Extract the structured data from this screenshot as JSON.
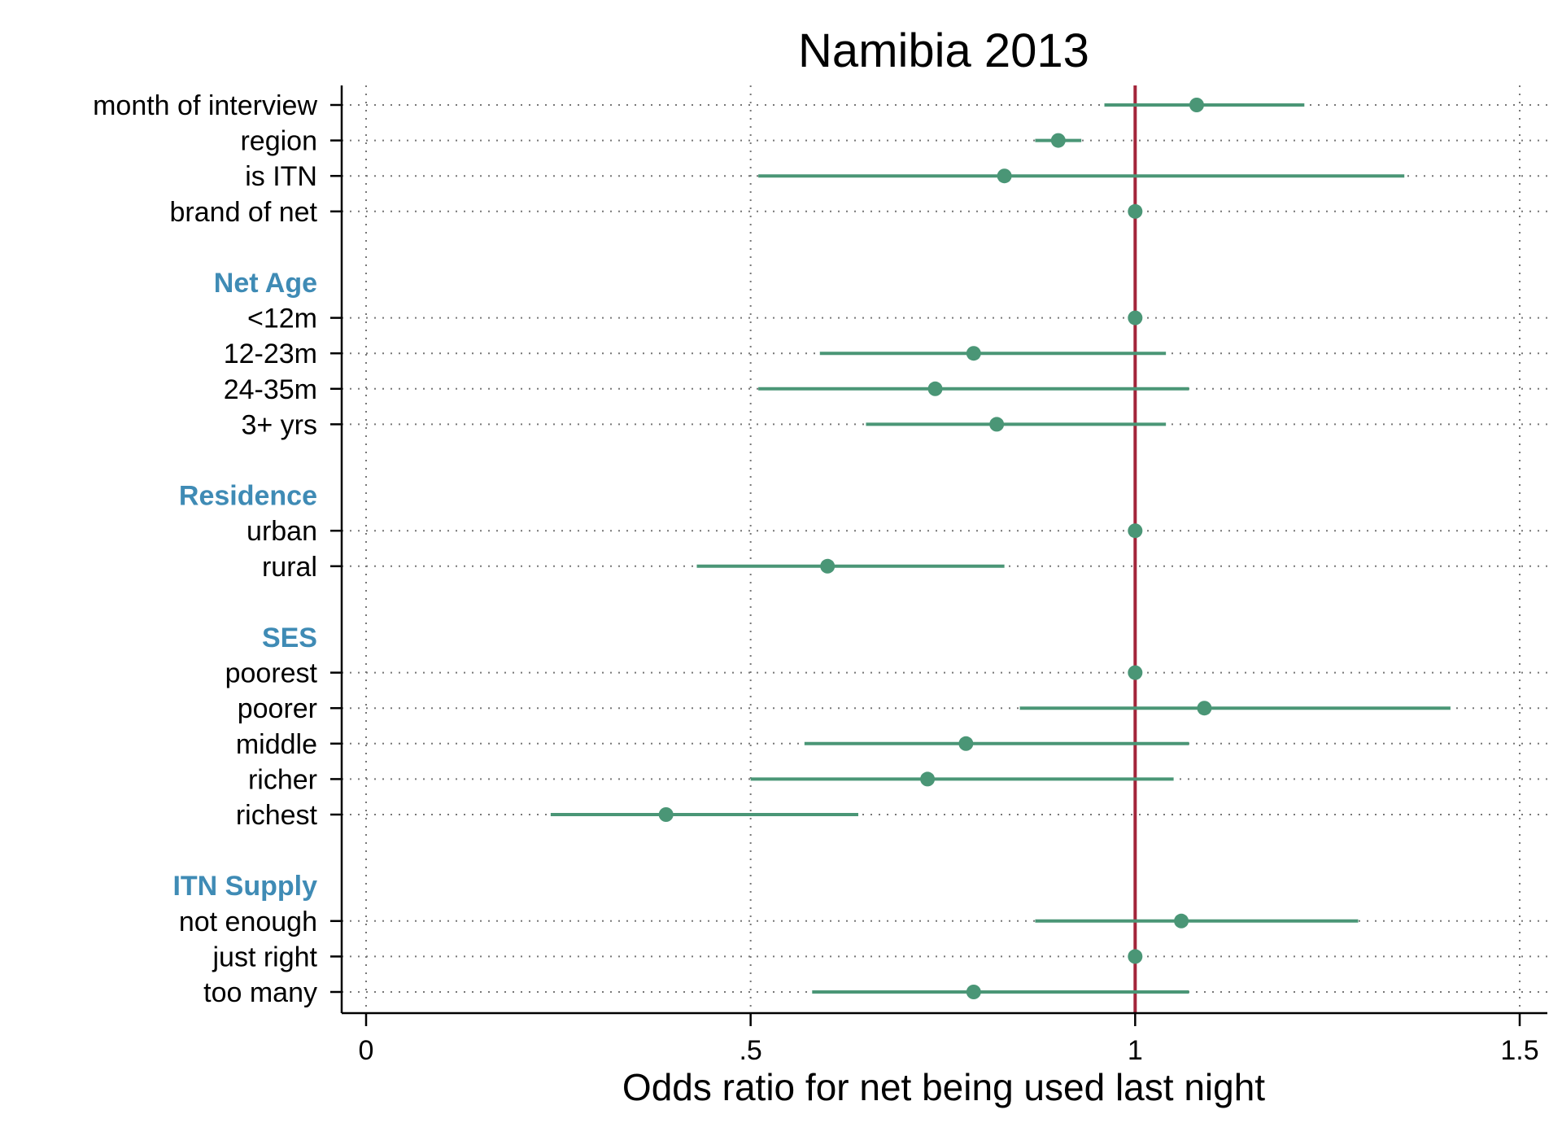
{
  "chart_data": {
    "type": "scatter",
    "subtype": "coefficient-plot",
    "title": "Namibia 2013",
    "xlabel": "Odds ratio for net being used last night",
    "ylabel": "",
    "xlim": [
      0,
      1.5
    ],
    "xticks": [
      0,
      0.5,
      1,
      1.5
    ],
    "xtick_labels": [
      "0",
      ".5",
      "1",
      "1.5"
    ],
    "grid": "dotted vertical and horizontal",
    "reference_line": 1,
    "colors": {
      "point": "#4a9676",
      "ci": "#4a9676",
      "reference": "#a3253a",
      "group_label": "#3f8bb5"
    },
    "rows": [
      {
        "kind": "item",
        "label": "month of interview",
        "or": 1.08,
        "lo": 0.96,
        "hi": 1.22
      },
      {
        "kind": "item",
        "label": "region",
        "or": 0.9,
        "lo": 0.87,
        "hi": 0.93
      },
      {
        "kind": "item",
        "label": "is ITN",
        "or": 0.83,
        "lo": 0.51,
        "hi": 1.35
      },
      {
        "kind": "item",
        "label": "brand of net",
        "or": 1.0,
        "lo": null,
        "hi": null
      },
      {
        "kind": "gap"
      },
      {
        "kind": "group",
        "label": "Net Age"
      },
      {
        "kind": "item",
        "label": "<12m",
        "or": 1.0,
        "lo": null,
        "hi": null
      },
      {
        "kind": "item",
        "label": "12-23m",
        "or": 0.79,
        "lo": 0.59,
        "hi": 1.04
      },
      {
        "kind": "item",
        "label": "24-35m",
        "or": 0.74,
        "lo": 0.51,
        "hi": 1.07
      },
      {
        "kind": "item",
        "label": "3+ yrs",
        "or": 0.82,
        "lo": 0.65,
        "hi": 1.04
      },
      {
        "kind": "gap"
      },
      {
        "kind": "group",
        "label": "Residence"
      },
      {
        "kind": "item",
        "label": "urban",
        "or": 1.0,
        "lo": null,
        "hi": null
      },
      {
        "kind": "item",
        "label": "rural",
        "or": 0.6,
        "lo": 0.43,
        "hi": 0.83
      },
      {
        "kind": "gap"
      },
      {
        "kind": "group",
        "label": "SES"
      },
      {
        "kind": "item",
        "label": "poorest",
        "or": 1.0,
        "lo": null,
        "hi": null
      },
      {
        "kind": "item",
        "label": "poorer",
        "or": 1.09,
        "lo": 0.85,
        "hi": 1.41
      },
      {
        "kind": "item",
        "label": "middle",
        "or": 0.78,
        "lo": 0.57,
        "hi": 1.07
      },
      {
        "kind": "item",
        "label": "richer",
        "or": 0.73,
        "lo": 0.5,
        "hi": 1.05
      },
      {
        "kind": "item",
        "label": "richest",
        "or": 0.39,
        "lo": 0.24,
        "hi": 0.64
      },
      {
        "kind": "gap"
      },
      {
        "kind": "group",
        "label": "ITN Supply"
      },
      {
        "kind": "item",
        "label": "not enough",
        "or": 1.06,
        "lo": 0.87,
        "hi": 1.29
      },
      {
        "kind": "item",
        "label": "just right",
        "or": 1.0,
        "lo": null,
        "hi": null
      },
      {
        "kind": "item",
        "label": "too many",
        "or": 0.79,
        "lo": 0.58,
        "hi": 1.07
      }
    ]
  }
}
